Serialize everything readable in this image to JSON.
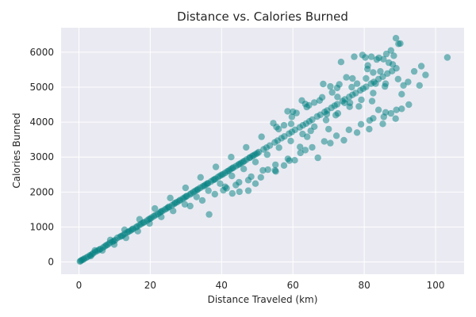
{
  "chart_data": {
    "type": "scatter",
    "title": "Distance vs. Calories Burned",
    "xlabel": "Distance Traveled (km)",
    "ylabel": "Calories Burned",
    "xlim": [
      -5,
      108
    ],
    "ylim": [
      -350,
      6700
    ],
    "x_ticks": [
      0,
      20,
      40,
      60,
      80,
      100
    ],
    "y_ticks": [
      0,
      1000,
      2000,
      3000,
      4000,
      5000,
      6000
    ],
    "grid": true,
    "point_color": "#008080",
    "point_opacity": 0.5,
    "background_color": "#eaeaf2",
    "points": [
      [
        0.5,
        30
      ],
      [
        1.2,
        70
      ],
      [
        2.0,
        120
      ],
      [
        3.1,
        190
      ],
      [
        4.0,
        250
      ],
      [
        5.2,
        320
      ],
      [
        6.0,
        370
      ],
      [
        7.3,
        450
      ],
      [
        8.1,
        500
      ],
      [
        9.4,
        580
      ],
      [
        10.2,
        630
      ],
      [
        11.5,
        720
      ],
      [
        12.3,
        760
      ],
      [
        13.6,
        850
      ],
      [
        14.5,
        900
      ],
      [
        15.2,
        950
      ],
      [
        16.4,
        1020
      ],
      [
        17.5,
        1090
      ],
      [
        18.3,
        1140
      ],
      [
        19.6,
        1220
      ],
      [
        20.4,
        1270
      ],
      [
        21.5,
        1340
      ],
      [
        22.7,
        1410
      ],
      [
        23.4,
        1460
      ],
      [
        24.6,
        1530
      ],
      [
        25.3,
        1580
      ],
      [
        26.7,
        1660
      ],
      [
        27.5,
        1710
      ],
      [
        28.4,
        1770
      ],
      [
        29.6,
        1840
      ],
      [
        30.3,
        1890
      ],
      [
        31.5,
        1960
      ],
      [
        32.6,
        2030
      ],
      [
        33.4,
        2080
      ],
      [
        34.7,
        2160
      ],
      [
        35.5,
        2210
      ],
      [
        36.2,
        2250
      ],
      [
        37.6,
        2340
      ],
      [
        38.3,
        2380
      ],
      [
        39.5,
        2460
      ],
      [
        40.4,
        2510
      ],
      [
        41.6,
        2590
      ],
      [
        42.5,
        2650
      ],
      [
        43.3,
        2700
      ],
      [
        44.7,
        2780
      ],
      [
        45.5,
        2830
      ],
      [
        46.4,
        2890
      ],
      [
        47.8,
        2980
      ],
      [
        48.6,
        3030
      ],
      [
        49.5,
        3080
      ],
      [
        50.4,
        3140
      ],
      [
        51.8,
        3220
      ],
      [
        52.6,
        3270
      ],
      [
        53.5,
        3330
      ],
      [
        54.9,
        3420
      ],
      [
        55.7,
        3470
      ],
      [
        56.8,
        3540
      ],
      [
        57.6,
        3590
      ],
      [
        58.9,
        3670
      ],
      [
        59.7,
        3720
      ],
      [
        60.6,
        3780
      ],
      [
        61.9,
        3850
      ],
      [
        62.8,
        3910
      ],
      [
        63.7,
        3960
      ],
      [
        64.6,
        4020
      ],
      [
        65.4,
        4070
      ],
      [
        66.8,
        4160
      ],
      [
        67.7,
        4210
      ],
      [
        68.9,
        4290
      ],
      [
        69.6,
        4330
      ],
      [
        70.8,
        4410
      ],
      [
        71.7,
        4470
      ],
      [
        72.4,
        4510
      ],
      [
        73.9,
        4600
      ],
      [
        74.6,
        4650
      ],
      [
        75.8,
        4720
      ],
      [
        76.7,
        4780
      ],
      [
        77.6,
        4830
      ],
      [
        78.9,
        4910
      ],
      [
        79.7,
        4960
      ],
      [
        80.5,
        5010
      ],
      [
        81.9,
        5100
      ],
      [
        82.7,
        5150
      ],
      [
        84.0,
        5230
      ],
      [
        85.2,
        5300
      ],
      [
        86.5,
        5390
      ],
      [
        87.8,
        5460
      ],
      [
        89.0,
        5540
      ],
      [
        3.3,
        170
      ],
      [
        6.6,
        330
      ],
      [
        9.9,
        500
      ],
      [
        13.2,
        690
      ],
      [
        16.5,
        880
      ],
      [
        19.8,
        1100
      ],
      [
        23.1,
        1290
      ],
      [
        26.4,
        1460
      ],
      [
        29.7,
        1650
      ],
      [
        33.0,
        1860
      ],
      [
        36.3,
        2040
      ],
      [
        39.6,
        2240
      ],
      [
        42.9,
        2460
      ],
      [
        46.2,
        2660
      ],
      [
        49.5,
        2860
      ],
      [
        52.8,
        3070
      ],
      [
        56.1,
        3270
      ],
      [
        59.4,
        3460
      ],
      [
        62.7,
        3660
      ],
      [
        66.0,
        3870
      ],
      [
        69.3,
        4060
      ],
      [
        72.6,
        4250
      ],
      [
        75.9,
        4440
      ],
      [
        79.2,
        4640
      ],
      [
        82.5,
        4830
      ],
      [
        85.8,
        5020
      ],
      [
        4.5,
        330
      ],
      [
        8.8,
        630
      ],
      [
        12.8,
        920
      ],
      [
        17.0,
        1220
      ],
      [
        21.3,
        1530
      ],
      [
        25.6,
        1830
      ],
      [
        29.9,
        2120
      ],
      [
        34.1,
        2420
      ],
      [
        38.4,
        2720
      ],
      [
        42.7,
        3000
      ],
      [
        46.9,
        3280
      ],
      [
        51.2,
        3580
      ],
      [
        55.4,
        3860
      ],
      [
        59.7,
        4150
      ],
      [
        63.9,
        4430
      ],
      [
        68.2,
        4710
      ],
      [
        72.4,
        4980
      ],
      [
        76.7,
        5250
      ],
      [
        80.9,
        5520
      ],
      [
        31.2,
        1600
      ],
      [
        34.6,
        1760
      ],
      [
        38.1,
        1940
      ],
      [
        41.4,
        2110
      ],
      [
        44.9,
        2280
      ],
      [
        48.3,
        2440
      ],
      [
        51.6,
        2620
      ],
      [
        55.1,
        2780
      ],
      [
        58.6,
        2950
      ],
      [
        62.1,
        3120
      ],
      [
        65.4,
        3280
      ],
      [
        68.8,
        3450
      ],
      [
        72.2,
        3610
      ],
      [
        75.7,
        3780
      ],
      [
        79.1,
        3940
      ],
      [
        82.5,
        4110
      ],
      [
        86.0,
        4280
      ],
      [
        40.5,
        2050
      ],
      [
        44.0,
        2200
      ],
      [
        47.5,
        2340
      ],
      [
        55.2,
        2590
      ],
      [
        59.0,
        2900
      ],
      [
        63.5,
        3200
      ],
      [
        67.0,
        2980
      ],
      [
        70.5,
        3400
      ],
      [
        74.3,
        3480
      ],
      [
        78.0,
        3700
      ],
      [
        81.4,
        3800
      ],
      [
        85.2,
        3950
      ],
      [
        88.8,
        4100
      ],
      [
        73.5,
        5720
      ],
      [
        77.2,
        5870
      ],
      [
        79.5,
        5920
      ],
      [
        80.3,
        5850
      ],
      [
        82.0,
        5870
      ],
      [
        83.5,
        5790
      ],
      [
        84.1,
        5840
      ],
      [
        85.4,
        5800
      ],
      [
        86.2,
        5950
      ],
      [
        87.5,
        6050
      ],
      [
        88.3,
        5900
      ],
      [
        88.9,
        6400
      ],
      [
        89.6,
        6240
      ],
      [
        90.1,
        6250
      ],
      [
        86.9,
        5700
      ],
      [
        88.0,
        5650
      ],
      [
        89.5,
        5230
      ],
      [
        90.5,
        4800
      ],
      [
        91.0,
        5050
      ],
      [
        92.3,
        5150
      ],
      [
        94.0,
        5450
      ],
      [
        95.5,
        5050
      ],
      [
        96.0,
        5600
      ],
      [
        97.2,
        5350
      ],
      [
        103.3,
        5850
      ],
      [
        92.5,
        4500
      ],
      [
        90.5,
        4380
      ],
      [
        89.0,
        4350
      ],
      [
        82.2,
        4600
      ],
      [
        83.2,
        5100
      ],
      [
        86.0,
        5100
      ],
      [
        87.5,
        4250
      ],
      [
        85.5,
        4150
      ],
      [
        84.0,
        4350
      ],
      [
        81.5,
        4050
      ],
      [
        78.5,
        4450
      ],
      [
        76.0,
        4550
      ],
      [
        74.5,
        4550
      ],
      [
        72.0,
        4200
      ],
      [
        70.0,
        3800
      ],
      [
        69.5,
        4230
      ],
      [
        65.0,
        3750
      ],
      [
        64.0,
        3580
      ],
      [
        62.0,
        3290
      ],
      [
        60.5,
        2910
      ],
      [
        57.5,
        2760
      ],
      [
        55.0,
        2620
      ],
      [
        53.0,
        2640
      ],
      [
        51.0,
        2420
      ],
      [
        49.5,
        2240
      ],
      [
        47.5,
        2040
      ],
      [
        45.0,
        2010
      ],
      [
        43.0,
        1960
      ],
      [
        41.0,
        2150
      ],
      [
        36.5,
        1360
      ],
      [
        68.5,
        5090
      ],
      [
        70.5,
        5020
      ],
      [
        71.0,
        4850
      ],
      [
        72.5,
        4720
      ],
      [
        73.0,
        5080
      ],
      [
        75.0,
        5280
      ],
      [
        76.5,
        5000
      ],
      [
        78.0,
        5100
      ],
      [
        80.5,
        5250
      ],
      [
        81.0,
        5620
      ],
      [
        82.5,
        5420
      ],
      [
        84.5,
        5450
      ],
      [
        62.5,
        4620
      ],
      [
        63.5,
        4520
      ],
      [
        64.5,
        4480
      ],
      [
        66.0,
        4560
      ],
      [
        67.5,
        4620
      ],
      [
        58.5,
        4310
      ],
      [
        60.0,
        4300
      ],
      [
        61.0,
        4260
      ],
      [
        54.5,
        3970
      ],
      [
        56.0,
        3800
      ],
      [
        57.5,
        3910
      ],
      [
        59.5,
        3950
      ],
      [
        0.3,
        15
      ],
      [
        0.8,
        55
      ],
      [
        1.5,
        95
      ],
      [
        2.5,
        150
      ],
      [
        3.6,
        215
      ],
      [
        4.6,
        290
      ],
      [
        5.7,
        350
      ],
      [
        6.8,
        415
      ],
      [
        7.7,
        480
      ],
      [
        8.6,
        540
      ],
      [
        9.8,
        600
      ],
      [
        10.8,
        690
      ],
      [
        11.9,
        740
      ],
      [
        12.9,
        810
      ],
      [
        14.0,
        870
      ],
      [
        14.9,
        930
      ],
      [
        16.0,
        990
      ],
      [
        17.0,
        1060
      ],
      [
        18.0,
        1120
      ],
      [
        19.1,
        1180
      ],
      [
        20.0,
        1240
      ],
      [
        21.0,
        1310
      ],
      [
        22.1,
        1370
      ],
      [
        23.0,
        1440
      ],
      [
        24.1,
        1500
      ],
      [
        25.0,
        1560
      ],
      [
        26.1,
        1620
      ],
      [
        27.0,
        1690
      ],
      [
        28.1,
        1750
      ],
      [
        29.1,
        1810
      ],
      [
        30.0,
        1870
      ],
      [
        31.1,
        1930
      ],
      [
        32.1,
        2000
      ],
      [
        33.1,
        2060
      ],
      [
        34.0,
        2120
      ],
      [
        35.1,
        2180
      ],
      [
        36.0,
        2240
      ],
      [
        37.0,
        2300
      ],
      [
        38.0,
        2360
      ],
      [
        39.0,
        2430
      ],
      [
        40.0,
        2490
      ],
      [
        41.0,
        2550
      ],
      [
        42.0,
        2610
      ],
      [
        43.0,
        2680
      ],
      [
        44.0,
        2740
      ],
      [
        45.0,
        2800
      ],
      [
        46.0,
        2860
      ],
      [
        47.0,
        2930
      ],
      [
        48.0,
        2990
      ],
      [
        49.0,
        3050
      ],
      [
        50.0,
        3110
      ]
    ]
  }
}
